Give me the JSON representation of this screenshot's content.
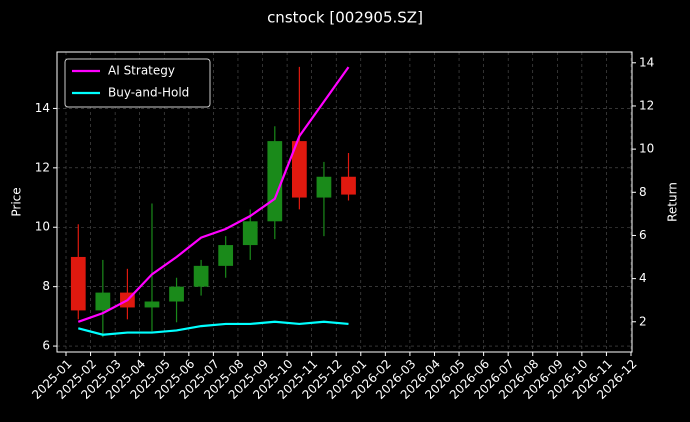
{
  "chart_data": {
    "type": "candlestick",
    "title": "cnstock [002905.SZ]",
    "ylabel": "Price",
    "y2label": "Return",
    "categories": [
      "2025-01",
      "2025-02",
      "2025-03",
      "2025-04",
      "2025-05",
      "2025-06",
      "2025-07",
      "2025-08",
      "2025-09",
      "2025-10",
      "2025-11",
      "2025-12",
      "2026-01",
      "2026-02",
      "2026-03",
      "2026-04",
      "2026-05",
      "2026-06",
      "2026-07",
      "2026-08",
      "2026-09",
      "2026-10",
      "2026-11",
      "2026-12"
    ],
    "open": [
      9.0,
      7.2,
      7.8,
      7.3,
      7.5,
      8.0,
      8.7,
      9.4,
      10.2,
      12.9,
      11.0,
      11.7,
      null,
      null,
      null,
      null,
      null,
      null,
      null,
      null,
      null,
      null,
      null,
      null
    ],
    "high": [
      10.1,
      8.9,
      8.6,
      10.8,
      8.3,
      8.9,
      9.7,
      10.6,
      13.4,
      15.4,
      12.2,
      12.5,
      null,
      null,
      null,
      null,
      null,
      null,
      null,
      null,
      null,
      null,
      null,
      null
    ],
    "low": [
      6.9,
      6.3,
      6.9,
      6.5,
      6.8,
      7.7,
      8.3,
      8.9,
      9.6,
      10.6,
      9.7,
      10.9,
      null,
      null,
      null,
      null,
      null,
      null,
      null,
      null,
      null,
      null,
      null,
      null
    ],
    "close": [
      7.2,
      7.8,
      7.3,
      7.5,
      8.0,
      8.7,
      9.4,
      10.2,
      12.9,
      11.0,
      11.7,
      11.1,
      null,
      null,
      null,
      null,
      null,
      null,
      null,
      null,
      null,
      null,
      null,
      null
    ],
    "up_color": "#1a8a1a",
    "down_color": "#e0190f",
    "series": [
      {
        "name": "AI Strategy",
        "color": "#ff00ff",
        "axis": "y2",
        "values": [
          2.0,
          2.4,
          3.0,
          4.2,
          5.0,
          5.9,
          6.3,
          6.9,
          7.7,
          10.6,
          12.2,
          13.8,
          null,
          null,
          null,
          null,
          null,
          null,
          null,
          null,
          null,
          null,
          null,
          null
        ]
      },
      {
        "name": "Buy-and-Hold",
        "color": "#00ffff",
        "axis": "y2",
        "values": [
          1.7,
          1.4,
          1.5,
          1.5,
          1.6,
          1.8,
          1.9,
          1.9,
          2.0,
          1.9,
          2.0,
          1.9,
          null,
          null,
          null,
          null,
          null,
          null,
          null,
          null,
          null,
          null,
          null,
          null
        ]
      }
    ],
    "ylim": [
      5.8,
      15.9
    ],
    "yticks": [
      6,
      8,
      10,
      12,
      14
    ],
    "y2lim": [
      0.6,
      14.5
    ],
    "y2ticks": [
      2,
      4,
      6,
      8,
      10,
      12,
      14
    ],
    "grid": true,
    "legend": "upper left"
  }
}
